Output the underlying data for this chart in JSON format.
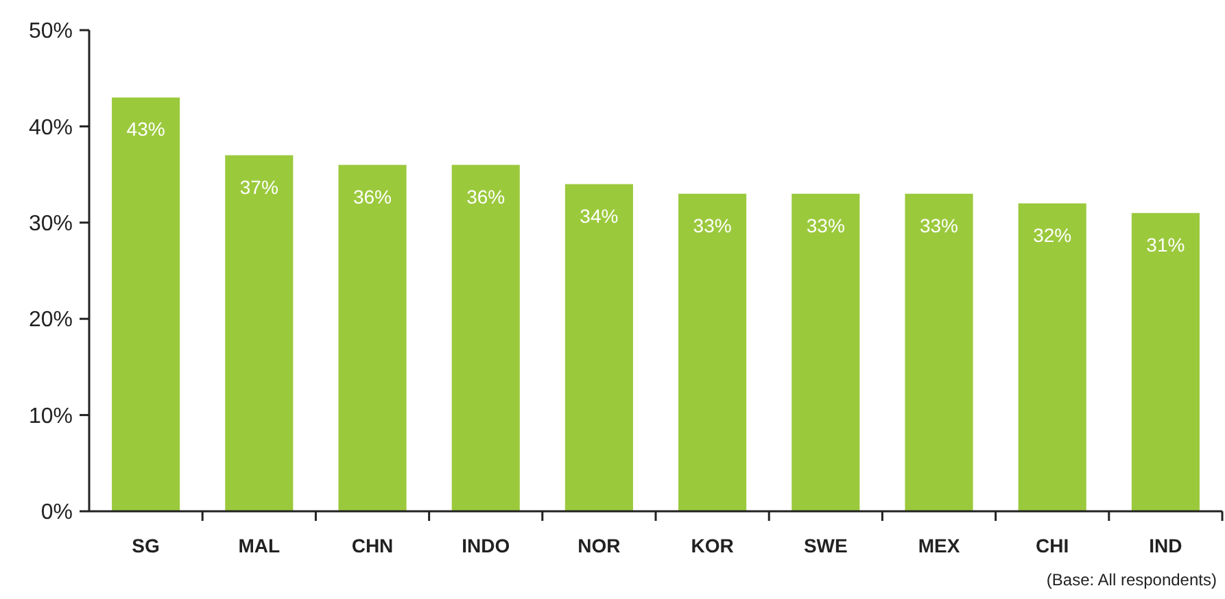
{
  "chart_data": {
    "type": "bar",
    "categories": [
      "SG",
      "MAL",
      "CHN",
      "INDO",
      "NOR",
      "KOR",
      "SWE",
      "MEX",
      "CHI",
      "IND"
    ],
    "values": [
      43,
      37,
      36,
      36,
      34,
      33,
      33,
      33,
      32,
      31
    ],
    "value_labels": [
      "43%",
      "37%",
      "36%",
      "36%",
      "34%",
      "33%",
      "33%",
      "33%",
      "32%",
      "31%"
    ],
    "color": "#9bc93c",
    "ylim": [
      0,
      50
    ],
    "yticks": [
      {
        "value": 0,
        "label": "0%"
      },
      {
        "value": 10,
        "label": "10%"
      },
      {
        "value": 20,
        "label": "20%"
      },
      {
        "value": 30,
        "label": "30%"
      },
      {
        "value": 40,
        "label": "40%"
      },
      {
        "value": 50,
        "label": "50%"
      }
    ],
    "grid": false,
    "annotations": [
      "(Base: All respondents)"
    ]
  }
}
